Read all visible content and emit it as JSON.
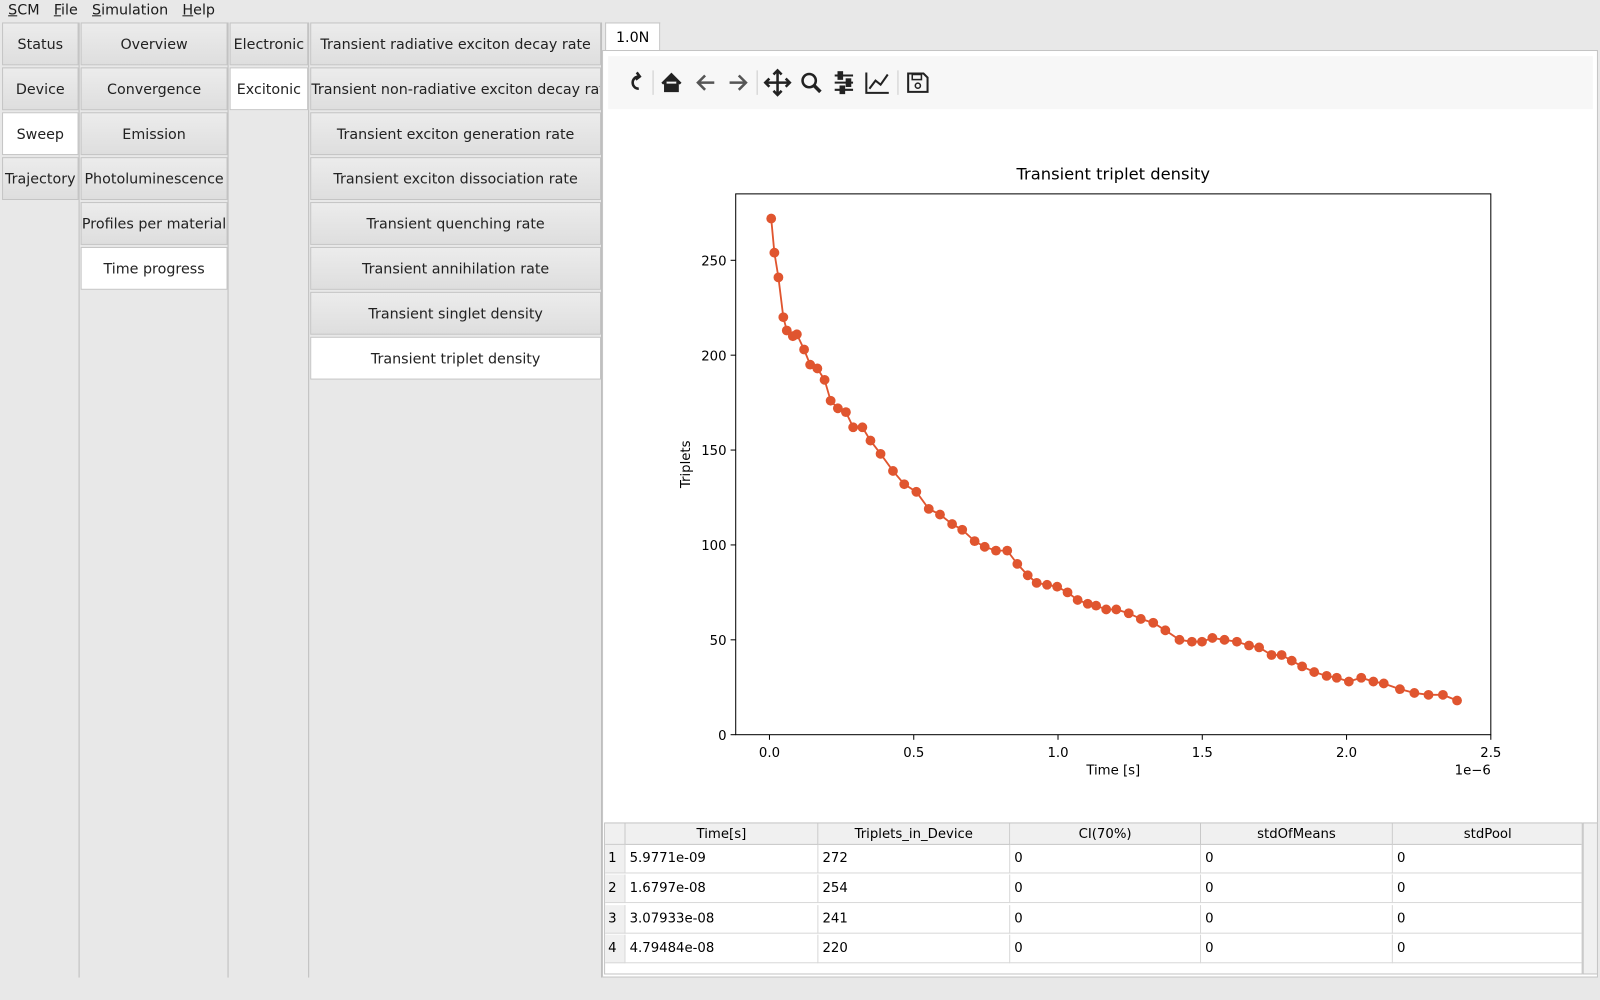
{
  "menu": [
    "SCM",
    "File",
    "Simulation",
    "Help"
  ],
  "nav": [
    {
      "items": [
        "Status",
        "Device",
        "Sweep",
        "Trajectory"
      ],
      "selected": 2
    },
    {
      "items": [
        "Overview",
        "Convergence",
        "Emission",
        "Photoluminescence",
        "Profiles per material",
        "Time progress"
      ],
      "selected": 5
    },
    {
      "items": [
        "Electronic",
        "Excitonic"
      ],
      "selected": 1
    },
    {
      "items": [
        "Transient radiative exciton decay rate",
        "Transient non-radiative exciton decay rate",
        "Transient exciton generation rate",
        "Transient exciton dissociation rate",
        "Transient quenching rate",
        "Transient annihilation rate",
        "Transient singlet density",
        "Transient triplet density"
      ],
      "selected": 7
    }
  ],
  "tab": "1.0N",
  "chart_data": {
    "type": "line",
    "title": "Transient triplet density",
    "x_label": "Time [s]",
    "y_label": "Triplets",
    "x_offset_label": "1e−6",
    "color": "#e0552f",
    "x": [
      0.006,
      0.017,
      0.031,
      0.048,
      0.06,
      0.081,
      0.095,
      0.12,
      0.141,
      0.166,
      0.191,
      0.212,
      0.237,
      0.265,
      0.29,
      0.322,
      0.35,
      0.385,
      0.428,
      0.467,
      0.509,
      0.552,
      0.591,
      0.633,
      0.668,
      0.711,
      0.746,
      0.785,
      0.824,
      0.859,
      0.895,
      0.926,
      0.962,
      0.997,
      1.033,
      1.068,
      1.103,
      1.132,
      1.167,
      1.202,
      1.245,
      1.287,
      1.33,
      1.372,
      1.421,
      1.464,
      1.499,
      1.535,
      1.577,
      1.62,
      1.662,
      1.697,
      1.74,
      1.775,
      1.81,
      1.846,
      1.888,
      1.931,
      1.966,
      2.008,
      2.051,
      2.093,
      2.129,
      2.185,
      2.235,
      2.284,
      2.334,
      2.383
    ],
    "values": [
      272,
      254,
      241,
      220,
      213,
      210,
      211,
      203,
      195,
      193,
      187,
      176,
      172,
      170,
      162,
      162,
      155,
      148,
      139,
      132,
      128,
      119,
      116,
      111,
      108,
      102,
      99,
      97,
      97,
      90,
      84,
      80,
      79,
      78,
      75,
      71,
      69,
      68,
      66,
      66,
      64,
      61,
      59,
      55,
      50,
      49,
      49,
      51,
      50,
      49,
      47,
      46,
      42,
      42,
      39,
      36,
      33,
      31,
      30,
      28,
      30,
      28,
      27,
      24,
      22,
      21,
      21,
      18
    ],
    "xlim": [
      -0.117,
      2.5
    ],
    "ylim": [
      0,
      285
    ],
    "xticks": [
      {
        "value": 0,
        "label": "0.0"
      },
      0.5,
      {
        "value": 1,
        "label": "1.0"
      },
      1.5,
      {
        "value": 2,
        "label": "2.0"
      },
      2.5
    ],
    "yticks": [
      0,
      50,
      100,
      150,
      200,
      250
    ],
    "grid": false
  },
  "table": {
    "columns": [
      "Time[s]",
      "Triplets_in_Device",
      "CI(70%)",
      "stdOfMeans",
      "stdPool"
    ],
    "rows": [
      [
        "1",
        "5.9771e-09",
        "272",
        "0",
        "0",
        "0"
      ],
      [
        "2",
        "1.6797e-08",
        "254",
        "0",
        "0",
        "0"
      ],
      [
        "3",
        "3.07933e-08",
        "241",
        "0",
        "0",
        "0"
      ],
      [
        "4",
        "4.79484e-08",
        "220",
        "0",
        "0",
        "0"
      ]
    ]
  }
}
